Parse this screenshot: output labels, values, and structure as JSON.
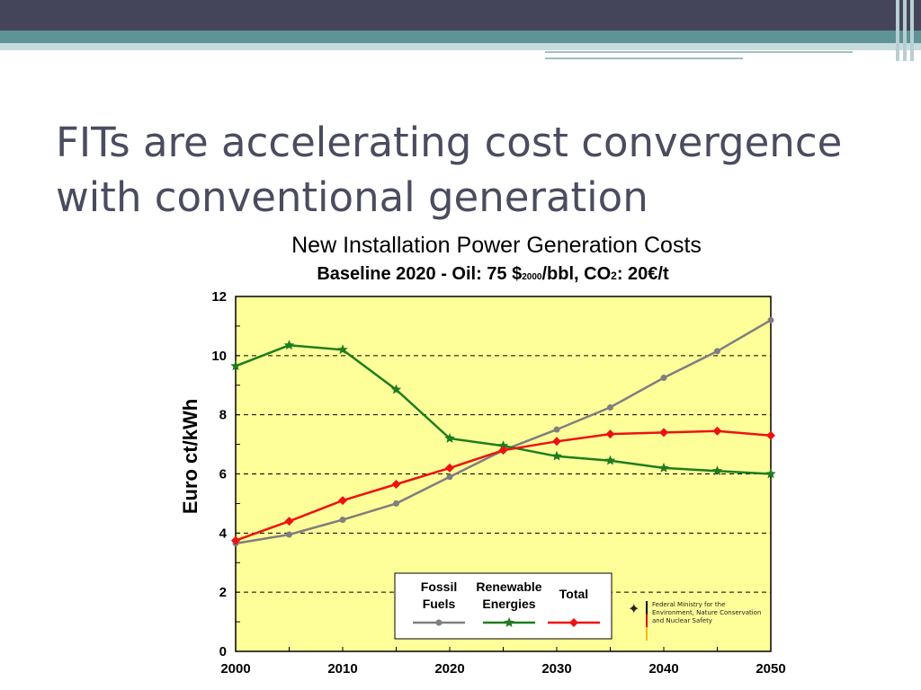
{
  "slide": {
    "title": "FITs are accelerating cost convergence with conventional generation"
  },
  "logo": {
    "icon": "eagle-icon",
    "text": "Federal Ministry for the Environment, Nature Conservation and Nuclear Safety"
  },
  "chart_data": {
    "type": "line",
    "title": "New Installation Power Generation Costs",
    "subtitle": "Baseline 2020 - Oil: 75 $2000/bbl, CO2: 20€/t",
    "subtitle_parts": {
      "main": "Baseline 2020 - Oil: 75 $",
      "sub1": "2000",
      "mid": "/bbl, CO",
      "sub2": "2",
      "end": ": 20€/t"
    },
    "xlabel": "",
    "ylabel": "Euro ct/kWh",
    "xlim": [
      2000,
      2050
    ],
    "ylim": [
      0,
      12
    ],
    "x_ticks": [
      "2000",
      "2010",
      "2020",
      "2030",
      "2040",
      "2050"
    ],
    "y_ticks": [
      "0",
      "2",
      "4",
      "6",
      "8",
      "10",
      "12"
    ],
    "grid": "horizontal dashed",
    "background": "#ffff99",
    "legend_position": "bottom-center",
    "x": [
      2000,
      2005,
      2010,
      2015,
      2020,
      2025,
      2030,
      2035,
      2040,
      2045,
      2050
    ],
    "series": [
      {
        "name": "Fossil Fuels",
        "legend_lines": [
          "Fossil",
          "Fuels"
        ],
        "color": "#7f7f7f",
        "marker": "circle",
        "values": [
          3.65,
          3.95,
          4.45,
          5.0,
          5.9,
          6.8,
          7.5,
          8.25,
          9.25,
          10.15,
          11.2
        ]
      },
      {
        "name": "Renewable Energies",
        "legend_lines": [
          "Renewable",
          "Energies"
        ],
        "color": "#1e7d1e",
        "marker": "star",
        "values": [
          9.65,
          10.35,
          10.2,
          8.85,
          7.2,
          6.95,
          6.6,
          6.45,
          6.2,
          6.1,
          6.0
        ]
      },
      {
        "name": "Total",
        "legend_lines": [
          "Total"
        ],
        "color": "#ee1111",
        "marker": "diamond",
        "values": [
          3.75,
          4.4,
          5.1,
          5.65,
          6.2,
          6.8,
          7.1,
          7.35,
          7.4,
          7.45,
          7.3
        ]
      }
    ]
  }
}
